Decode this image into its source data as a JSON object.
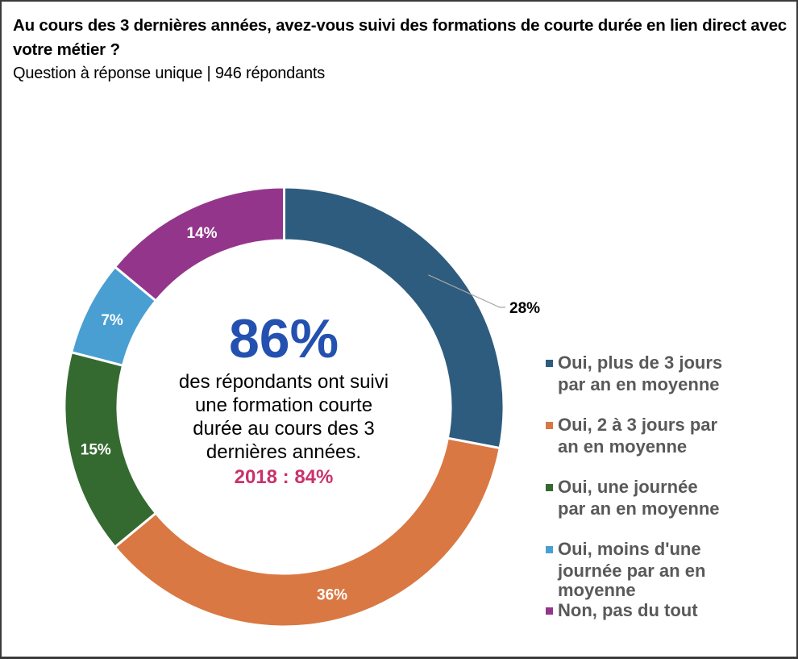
{
  "header": {
    "title": "Au cours des 3 dernières années, avez-vous suivi des formations de courte durée en lien direct avec votre métier ?",
    "subtitle": "Question à réponse unique | 946 répondants"
  },
  "center": {
    "headline": "86%",
    "text_lines": [
      "des répondants ont suivi",
      "une formation courte",
      "durée au cours des 3",
      "dernières années."
    ],
    "previous_year": "2018 : 84%"
  },
  "chart_data": {
    "type": "pie",
    "variant": "donut",
    "title": "Au cours des 3 dernières années, avez-vous suivi des formations de courte durée en lien direct avec votre métier ?",
    "start_angle": "12 o'clock, clockwise",
    "legend_position": "right",
    "slices": [
      {
        "label": "Oui, plus de 3 jours par an en moyenne",
        "value": 28,
        "display": "28%",
        "color": "#2e5c7e",
        "label_color": "#000000",
        "label_outside": true
      },
      {
        "label": "Oui, 2 à 3 jours par an en moyenne",
        "value": 36,
        "display": "36%",
        "color": "#da7843",
        "label_color": "#ffffff",
        "label_outside": false
      },
      {
        "label": "Oui, une journée par an en moyenne",
        "value": 15,
        "display": "15%",
        "color": "#346a30",
        "label_color": "#ffffff",
        "label_outside": false
      },
      {
        "label": "Oui, moins d'une journée par an en moyenne",
        "value": 7,
        "display": "7%",
        "color": "#4a9fd2",
        "label_color": "#ffffff",
        "label_outside": false
      },
      {
        "label": "Non, pas du tout",
        "value": 14,
        "display": "14%",
        "color": "#93368b",
        "label_color": "#ffffff",
        "label_outside": false
      }
    ]
  },
  "legend": {
    "items": [
      {
        "lines": [
          "Oui, plus de 3 jours",
          "par an en moyenne"
        ],
        "color": "#2e5c7e"
      },
      {
        "lines": [
          "Oui, 2 à 3 jours par",
          "an en moyenne"
        ],
        "color": "#da7843"
      },
      {
        "lines": [
          "Oui, une journée",
          "par an en moyenne"
        ],
        "color": "#346a30"
      },
      {
        "lines": [
          "Oui, moins d'une",
          "journée par an en",
          "moyenne"
        ],
        "color": "#4a9fd2"
      },
      {
        "lines": [
          "Non, pas du tout"
        ],
        "color": "#93368b"
      }
    ]
  }
}
